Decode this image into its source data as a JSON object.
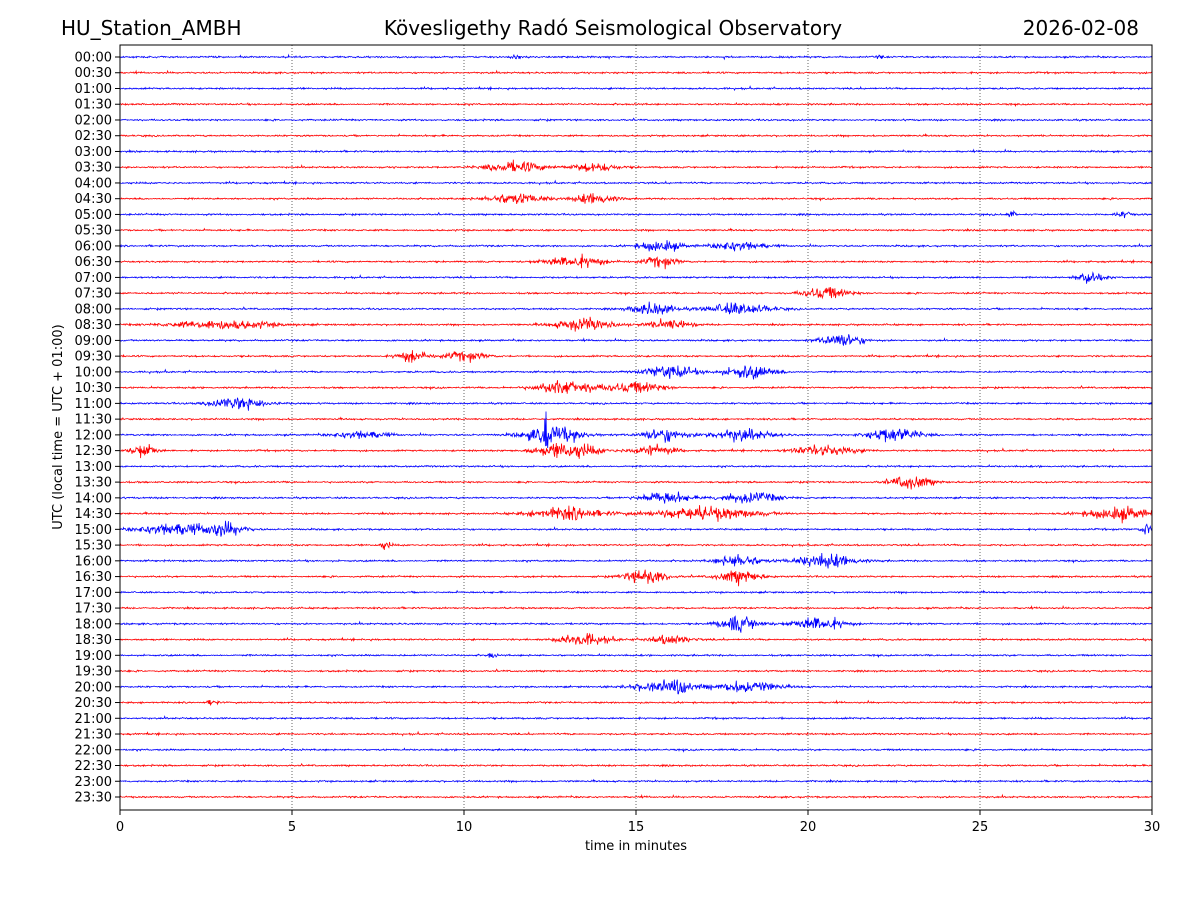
{
  "header": {
    "station": "HU_Station_AMBH",
    "observatory": "Kövesligethy Radó Seismological Observatory",
    "date": "2026-02-08"
  },
  "chart_data": {
    "type": "line",
    "title": "Kövesligethy Radó Seismological Observatory",
    "xlabel": "time in minutes",
    "ylabel": "UTC (local time = UTC + 01:00)",
    "xlim": [
      0,
      30
    ],
    "xticks": [
      "0",
      "5",
      "10",
      "15",
      "20",
      "25",
      "30"
    ],
    "grid": "vertical dotted at each x tick",
    "row_labels": [
      "00:00",
      "00:30",
      "01:00",
      "01:30",
      "02:00",
      "02:30",
      "03:00",
      "03:30",
      "04:00",
      "04:30",
      "05:00",
      "05:30",
      "06:00",
      "06:30",
      "07:00",
      "07:30",
      "08:00",
      "08:30",
      "09:00",
      "09:30",
      "10:00",
      "10:30",
      "11:00",
      "11:30",
      "12:00",
      "12:30",
      "13:00",
      "13:30",
      "14:00",
      "14:30",
      "15:00",
      "15:30",
      "16:00",
      "16:30",
      "17:00",
      "17:30",
      "18:00",
      "18:30",
      "19:00",
      "19:30",
      "20:00",
      "20:30",
      "21:00",
      "21:30",
      "22:00",
      "22:30",
      "23:00",
      "23:30"
    ],
    "series_colors": [
      "#0000ff",
      "#ff0000"
    ],
    "events": [
      {
        "row": 0,
        "minute": 11.5,
        "amp": 1.5,
        "dur": 0.3
      },
      {
        "row": 0,
        "minute": 22.1,
        "amp": 2,
        "dur": 0.2
      },
      {
        "row": 7,
        "minute": 11.5,
        "amp": 7,
        "dur": 1.4
      },
      {
        "row": 7,
        "minute": 13.8,
        "amp": 6,
        "dur": 1.1
      },
      {
        "row": 9,
        "minute": 11.5,
        "amp": 7,
        "dur": 1.4
      },
      {
        "row": 9,
        "minute": 13.8,
        "amp": 7,
        "dur": 1.0
      },
      {
        "row": 10,
        "minute": 25.9,
        "amp": 5,
        "dur": 0.2
      },
      {
        "row": 10,
        "minute": 29.2,
        "amp": 4,
        "dur": 0.4
      },
      {
        "row": 12,
        "minute": 15.7,
        "amp": 8,
        "dur": 1.0
      },
      {
        "row": 12,
        "minute": 18.0,
        "amp": 7,
        "dur": 1.2
      },
      {
        "row": 13,
        "minute": 13.2,
        "amp": 8,
        "dur": 1.4
      },
      {
        "row": 13,
        "minute": 15.7,
        "amp": 7,
        "dur": 0.8
      },
      {
        "row": 14,
        "minute": 28.2,
        "amp": 10,
        "dur": 0.6
      },
      {
        "row": 15,
        "minute": 20.5,
        "amp": 8,
        "dur": 1.1
      },
      {
        "row": 16,
        "minute": 15.5,
        "amp": 9,
        "dur": 1.0
      },
      {
        "row": 16,
        "minute": 18.0,
        "amp": 8,
        "dur": 1.5
      },
      {
        "row": 17,
        "minute": 3.0,
        "amp": 6,
        "dur": 2.5
      },
      {
        "row": 17,
        "minute": 13.5,
        "amp": 9,
        "dur": 1.4
      },
      {
        "row": 17,
        "minute": 16.0,
        "amp": 7,
        "dur": 1.0
      },
      {
        "row": 18,
        "minute": 21.0,
        "amp": 9,
        "dur": 1.0
      },
      {
        "row": 19,
        "minute": 8.5,
        "amp": 8,
        "dur": 0.7
      },
      {
        "row": 19,
        "minute": 10.0,
        "amp": 6,
        "dur": 1.0
      },
      {
        "row": 20,
        "minute": 16.0,
        "amp": 9,
        "dur": 1.2
      },
      {
        "row": 20,
        "minute": 18.3,
        "amp": 9,
        "dur": 1.2
      },
      {
        "row": 21,
        "minute": 13.0,
        "amp": 10,
        "dur": 1.4
      },
      {
        "row": 21,
        "minute": 15.0,
        "amp": 7,
        "dur": 1.4
      },
      {
        "row": 22,
        "minute": 3.5,
        "amp": 8,
        "dur": 1.4
      },
      {
        "row": 24,
        "minute": 7.0,
        "amp": 6,
        "dur": 1.2
      },
      {
        "row": 24,
        "minute": 12.6,
        "amp": 12,
        "dur": 1.4
      },
      {
        "row": 24,
        "minute": 12.35,
        "amp": 60,
        "dur": 0.08
      },
      {
        "row": 24,
        "minute": 15.8,
        "amp": 9,
        "dur": 1.0
      },
      {
        "row": 24,
        "minute": 18.0,
        "amp": 8,
        "dur": 1.5
      },
      {
        "row": 24,
        "minute": 22.5,
        "amp": 10,
        "dur": 1.2
      },
      {
        "row": 25,
        "minute": 0.7,
        "amp": 10,
        "dur": 0.6
      },
      {
        "row": 25,
        "minute": 13.0,
        "amp": 11,
        "dur": 1.5
      },
      {
        "row": 25,
        "minute": 15.5,
        "amp": 8,
        "dur": 1.0
      },
      {
        "row": 25,
        "minute": 20.5,
        "amp": 7,
        "dur": 1.5
      },
      {
        "row": 27,
        "minute": 23.0,
        "amp": 9,
        "dur": 1.0
      },
      {
        "row": 28,
        "minute": 15.8,
        "amp": 8,
        "dur": 1.2
      },
      {
        "row": 28,
        "minute": 18.3,
        "amp": 7,
        "dur": 1.5
      },
      {
        "row": 29,
        "minute": 13.0,
        "amp": 9,
        "dur": 1.7
      },
      {
        "row": 29,
        "minute": 17.0,
        "amp": 9,
        "dur": 2.5
      },
      {
        "row": 29,
        "minute": 29.0,
        "amp": 9,
        "dur": 1.5
      },
      {
        "row": 30,
        "minute": 1.5,
        "amp": 9,
        "dur": 1.5
      },
      {
        "row": 30,
        "minute": 3.0,
        "amp": 10,
        "dur": 1.0
      },
      {
        "row": 30,
        "minute": 29.9,
        "amp": 10,
        "dur": 0.3
      },
      {
        "row": 31,
        "minute": 7.7,
        "amp": 5,
        "dur": 0.3
      },
      {
        "row": 32,
        "minute": 18.0,
        "amp": 9,
        "dur": 1.0
      },
      {
        "row": 32,
        "minute": 20.5,
        "amp": 9,
        "dur": 1.5
      },
      {
        "row": 33,
        "minute": 15.3,
        "amp": 10,
        "dur": 1.0
      },
      {
        "row": 33,
        "minute": 18.0,
        "amp": 9,
        "dur": 1.0
      },
      {
        "row": 36,
        "minute": 18.0,
        "amp": 10,
        "dur": 1.0
      },
      {
        "row": 36,
        "minute": 20.3,
        "amp": 10,
        "dur": 1.2
      },
      {
        "row": 37,
        "minute": 13.5,
        "amp": 8,
        "dur": 1.2
      },
      {
        "row": 37,
        "minute": 16.0,
        "amp": 6,
        "dur": 1.0
      },
      {
        "row": 38,
        "minute": 10.8,
        "amp": 4,
        "dur": 0.2
      },
      {
        "row": 40,
        "minute": 15.8,
        "amp": 7,
        "dur": 1.5
      },
      {
        "row": 40,
        "minute": 16.3,
        "amp": 10,
        "dur": 0.3
      },
      {
        "row": 40,
        "minute": 18.2,
        "amp": 8,
        "dur": 1.5
      },
      {
        "row": 41,
        "minute": 2.7,
        "amp": 6,
        "dur": 0.2
      }
    ]
  }
}
